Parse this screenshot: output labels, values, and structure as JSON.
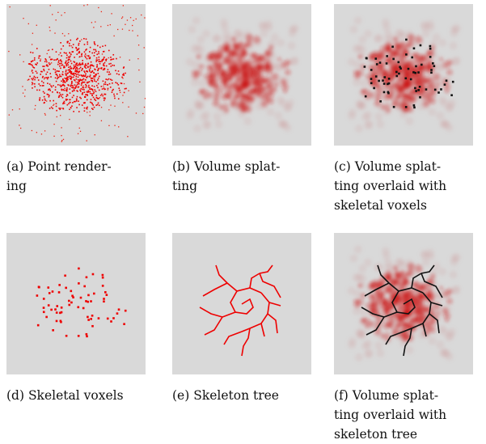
{
  "panels": [
    {
      "caption": [
        "(a) Point render-",
        "ing"
      ]
    },
    {
      "caption": [
        "(b) Volume splat-",
        "ting"
      ]
    },
    {
      "caption": [
        "(c) Volume splat-",
        "ting overlaid with",
        "skeletal voxels"
      ]
    },
    {
      "caption": [
        "(d) Skeletal voxels"
      ]
    },
    {
      "caption": [
        "(e) Skeleton tree"
      ]
    },
    {
      "caption": [
        "(f) Volume splat-",
        "ting overlaid with",
        "skeleton tree"
      ]
    }
  ]
}
